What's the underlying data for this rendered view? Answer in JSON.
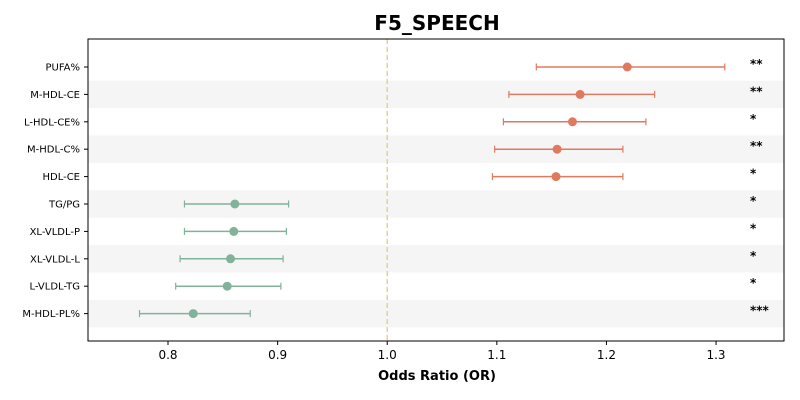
{
  "chart_data": {
    "type": "forest",
    "title": "F5_SPEECH",
    "xlabel": "Odds Ratio (OR)",
    "xlim": [
      0.727,
      1.362
    ],
    "xticks": [
      0.8,
      0.9,
      1.0,
      1.1,
      1.2,
      1.3
    ],
    "xtick_labels": [
      "0.8",
      "0.9",
      "1.0",
      "1.1",
      "1.2",
      "1.3"
    ],
    "reference_line": 1.0,
    "colors": {
      "positive": "#e07a5f",
      "negative": "#81b29a",
      "reference": "#f2cc8f",
      "band": "#f5f5f5"
    },
    "rows": [
      {
        "label": "PUFA%",
        "or": 1.219,
        "ci": [
          1.136,
          1.308
        ],
        "sig": "**"
      },
      {
        "label": "M-HDL-CE",
        "or": 1.176,
        "ci": [
          1.111,
          1.244
        ],
        "sig": "**"
      },
      {
        "label": "L-HDL-CE%",
        "or": 1.169,
        "ci": [
          1.106,
          1.236
        ],
        "sig": "*"
      },
      {
        "label": "M-HDL-C%",
        "or": 1.155,
        "ci": [
          1.098,
          1.215
        ],
        "sig": "**"
      },
      {
        "label": "HDL-CE",
        "or": 1.154,
        "ci": [
          1.096,
          1.215
        ],
        "sig": "*"
      },
      {
        "label": "TG/PG",
        "or": 0.861,
        "ci": [
          0.815,
          0.91
        ],
        "sig": "*"
      },
      {
        "label": "XL-VLDL-P",
        "or": 0.86,
        "ci": [
          0.815,
          0.908
        ],
        "sig": "*"
      },
      {
        "label": "XL-VLDL-L",
        "or": 0.857,
        "ci": [
          0.811,
          0.905
        ],
        "sig": "*"
      },
      {
        "label": "L-VLDL-TG",
        "or": 0.854,
        "ci": [
          0.807,
          0.903
        ],
        "sig": "*"
      },
      {
        "label": "M-HDL-PL%",
        "or": 0.823,
        "ci": [
          0.774,
          0.875
        ],
        "sig": "***"
      }
    ]
  }
}
